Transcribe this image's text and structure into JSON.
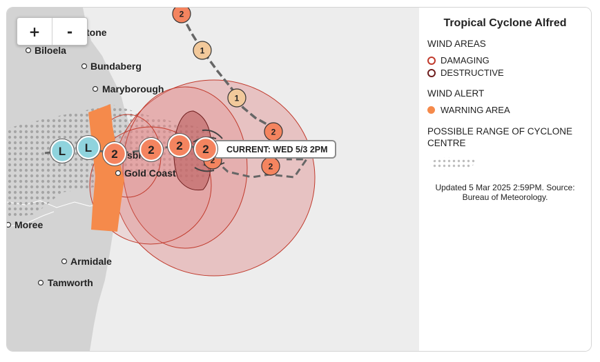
{
  "map": {
    "zoom_in_label": "+",
    "zoom_out_label": "-",
    "cities": {
      "rockhampton": "tone",
      "biloela": "Biloela",
      "bundaberg": "Bundaberg",
      "maryborough": "Maryborough",
      "brisbane": "sbl",
      "gold_coast": "Gold Coast",
      "moree": "Moree",
      "armidale": "Armidale",
      "tamworth": "Tamworth"
    },
    "track_markers": {
      "past_2_top": "2",
      "past_1_a": "1",
      "past_1_b": "1",
      "past_2_east": "2",
      "fc_2_a": "2",
      "fc_2_b": "2",
      "fc_2_c": "2",
      "current_2": "2",
      "fc_2_south": "2",
      "fc_2_far": "2",
      "low_1": "L",
      "low_2": "L"
    },
    "current_label": "CURRENT: WED 5/3 2PM"
  },
  "legend": {
    "title": "Tropical Cyclone Alfred",
    "wind_areas_heading": "WIND AREAS",
    "damaging_label": "DAMAGING",
    "destructive_label": "DESTRUCTIVE",
    "wind_alert_heading": "WIND ALERT",
    "warning_area_label": "WARNING AREA",
    "range_heading_line1": "POSSIBLE RANGE OF CYCLONE",
    "range_heading_line2": "CENTRE",
    "updated_line1": "Updated 5 Mar 2025 2:59PM. Source:",
    "updated_line2": "Bureau of Meteorology."
  },
  "colors": {
    "ocean": "#ededed",
    "land": "#d3d3d3",
    "damaging": "#c0392b",
    "destructive": "#6e1e1e",
    "warning_area": "#f58a4b",
    "wind_zone_fill": "#e08888",
    "marker_cat2": "#f4845f",
    "marker_cat1": "#f2c99b",
    "marker_low": "#8fd3dd"
  }
}
